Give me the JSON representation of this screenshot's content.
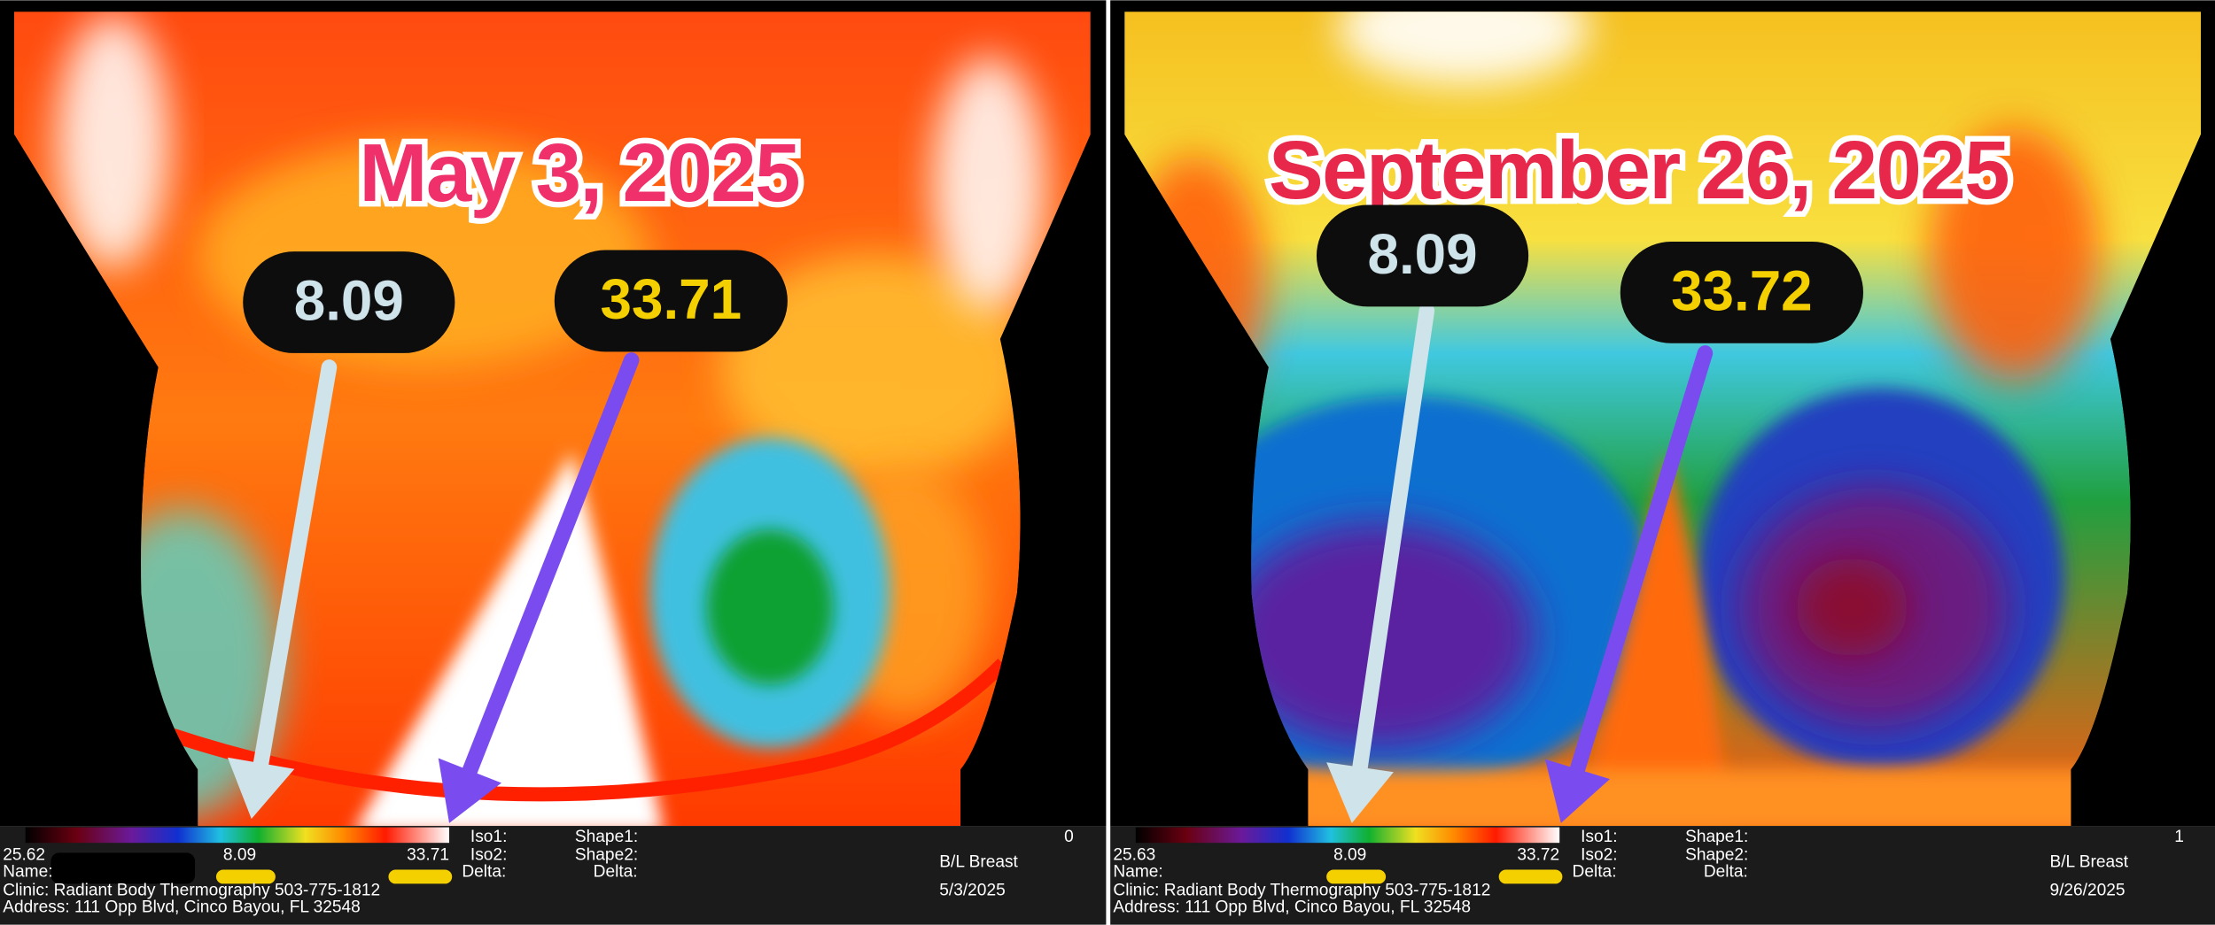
{
  "panels": [
    {
      "title": "May 3, 2025",
      "callouts": [
        "8.09",
        "33.71"
      ],
      "status": {
        "scale_min": "25.62",
        "scale_mid": "8.09",
        "scale_max": "33.71",
        "iso1": "Iso1:",
        "iso2": "Iso2:",
        "delta1": "Delta:",
        "shape1": "Shape1:",
        "shape2": "Shape2:",
        "delta2": "Delta:",
        "counter": "0",
        "name": "Name:",
        "clinic": "Clinic: Radiant Body Thermography 503-775-1812",
        "address": "Address: 111 Opp Blvd, Cinco Bayou, FL 32548",
        "view": "B/L Breast",
        "date": "5/3/2025"
      }
    },
    {
      "title": "September 26, 2025",
      "callouts": [
        "8.09",
        "33.72"
      ],
      "status": {
        "scale_min": "25.63",
        "scale_mid": "8.09",
        "scale_max": "33.72",
        "iso1": "Iso1:",
        "iso2": "Iso2:",
        "delta1": "Delta:",
        "shape1": "Shape1:",
        "shape2": "Shape2:",
        "delta2": "Delta:",
        "counter": "1",
        "name": "Name:",
        "clinic": "Clinic: Radiant Body Thermography 503-775-1812",
        "address": "Address: 111 Opp Blvd, Cinco Bayou, FL 32548",
        "view": "B/L Breast",
        "date": "9/26/2025"
      }
    }
  ]
}
